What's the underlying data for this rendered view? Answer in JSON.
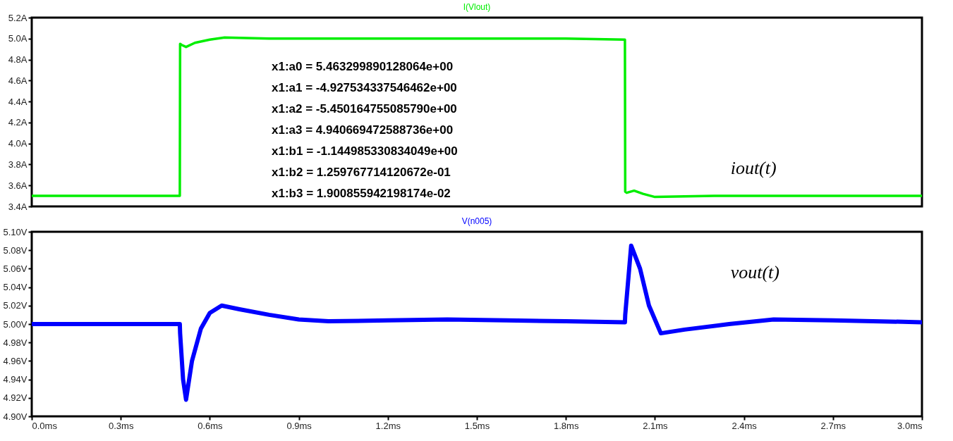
{
  "chart_data": [
    {
      "type": "line",
      "title": "I(Vlout)",
      "series": [
        {
          "color": "#00ee00",
          "x": [
            0,
            0.1,
            0.2,
            0.3,
            0.4,
            0.499,
            0.5,
            0.505,
            0.52,
            0.55,
            0.6,
            0.65,
            0.8,
            1.0,
            1.5,
            1.8,
            1.999,
            2.0,
            2.005,
            2.03,
            2.06,
            2.1,
            2.3,
            2.6,
            3.0
          ],
          "values": [
            3.5,
            3.5,
            3.5,
            3.5,
            3.5,
            3.5,
            4.95,
            4.94,
            4.92,
            4.96,
            4.99,
            5.01,
            5.0,
            5.0,
            5.0,
            5.0,
            4.99,
            3.54,
            3.53,
            3.55,
            3.52,
            3.49,
            3.5,
            3.5,
            3.5
          ]
        }
      ],
      "xlim": [
        0,
        3
      ],
      "ylim": [
        3.4,
        5.2
      ],
      "yticks": [
        {
          "value": 3.4,
          "label": "3.4A"
        },
        {
          "value": 3.6,
          "label": "3.6A"
        },
        {
          "value": 3.8,
          "label": "3.8A"
        },
        {
          "value": 4.0,
          "label": "4.0A"
        },
        {
          "value": 4.2,
          "label": "4.2A"
        },
        {
          "value": 4.4,
          "label": "4.4A"
        },
        {
          "value": 4.6,
          "label": "4.6A"
        },
        {
          "value": 4.8,
          "label": "4.8A"
        },
        {
          "value": 5.0,
          "label": "5.0A"
        },
        {
          "value": 5.2,
          "label": "5.2A"
        }
      ],
      "tick_labels": "y",
      "grid": false,
      "annotations": [
        "x1:a0 = 5.463299890128064e+00",
        "x1:a1 = -4.927534337546462e+00",
        "x1:a2 = -5.450164755085790e+00",
        "x1:a3 = 4.940669472588736e+00",
        "x1:b1 = -1.144985330834049e+00",
        "x1:b2 = 1.259767714120672e-01",
        "x1:b3 = 1.900855942198174e-02",
        "iout(t)"
      ]
    },
    {
      "type": "line",
      "title": "V(n005)",
      "series": [
        {
          "color": "#0000ff",
          "x": [
            0,
            0.2,
            0.4,
            0.499,
            0.5,
            0.51,
            0.52,
            0.54,
            0.57,
            0.6,
            0.64,
            0.7,
            0.8,
            0.9,
            1.0,
            1.2,
            1.4,
            1.6,
            1.8,
            1.999,
            2.0,
            2.02,
            2.05,
            2.08,
            2.12,
            2.2,
            2.35,
            2.5,
            2.7,
            3.0
          ],
          "values": [
            5.0,
            5.0,
            5.0,
            5.0,
            4.99,
            4.94,
            4.918,
            4.96,
            4.995,
            5.012,
            5.02,
            5.016,
            5.01,
            5.005,
            5.003,
            5.004,
            5.005,
            5.004,
            5.003,
            5.002,
            5.01,
            5.085,
            5.06,
            5.02,
            4.99,
            4.994,
            5.0,
            5.005,
            5.004,
            5.002
          ]
        }
      ],
      "xlim": [
        0,
        3
      ],
      "ylim": [
        4.9,
        5.1
      ],
      "xticks": [
        {
          "value": 0,
          "label": "0.0ms"
        },
        {
          "value": 0.3,
          "label": "0.3ms"
        },
        {
          "value": 0.6,
          "label": "0.6ms"
        },
        {
          "value": 0.9,
          "label": "0.9ms"
        },
        {
          "value": 1.2,
          "label": "1.2ms"
        },
        {
          "value": 1.5,
          "label": "1.5ms"
        },
        {
          "value": 1.8,
          "label": "1.8ms"
        },
        {
          "value": 2.1,
          "label": "2.1ms"
        },
        {
          "value": 2.4,
          "label": "2.4ms"
        },
        {
          "value": 2.7,
          "label": "2.7ms"
        },
        {
          "value": 3.0,
          "label": "3.0ms"
        }
      ],
      "yticks": [
        {
          "value": 4.9,
          "label": "4.90V"
        },
        {
          "value": 4.92,
          "label": "4.92V"
        },
        {
          "value": 4.94,
          "label": "4.94V"
        },
        {
          "value": 4.96,
          "label": "4.96V"
        },
        {
          "value": 4.98,
          "label": "4.98V"
        },
        {
          "value": 5.0,
          "label": "5.00V"
        },
        {
          "value": 5.02,
          "label": "5.02V"
        },
        {
          "value": 5.04,
          "label": "5.04V"
        },
        {
          "value": 5.06,
          "label": "5.06V"
        },
        {
          "value": 5.08,
          "label": "5.08V"
        },
        {
          "value": 5.1,
          "label": "5.10V"
        }
      ],
      "grid": false,
      "annotations": [
        "vout(t)"
      ]
    }
  ]
}
